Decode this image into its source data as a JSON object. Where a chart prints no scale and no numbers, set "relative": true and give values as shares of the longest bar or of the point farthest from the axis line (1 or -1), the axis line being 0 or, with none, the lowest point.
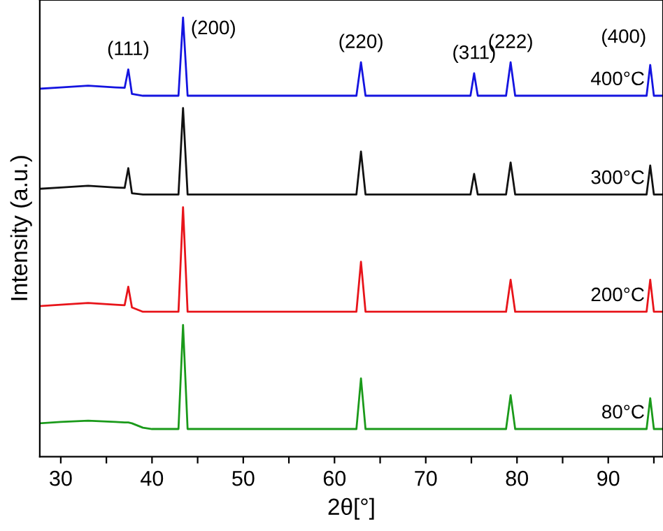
{
  "chart_data": {
    "type": "line",
    "relative": true,
    "xlabel": "2θ[°]",
    "ylabel": "Intensity (a.u.)",
    "xlim": [
      27.7,
      96
    ],
    "xticks": [
      30,
      {
        "value": 35,
        "label": null
      },
      40,
      {
        "value": 45,
        "label": null
      },
      50,
      {
        "value": 55,
        "label": null
      },
      60,
      {
        "value": 65,
        "label": null
      },
      70,
      {
        "value": 75,
        "label": null
      },
      80,
      {
        "value": 85,
        "label": null
      },
      90,
      {
        "value": 95,
        "label": null
      }
    ],
    "grid": false,
    "legend": false,
    "marker": "none",
    "line_style": "solid",
    "x": [
      27.7,
      30,
      33,
      36,
      37.0,
      37.4,
      37.8,
      39,
      40,
      42.9,
      43.4,
      43.9,
      46,
      50,
      54,
      58,
      62.4,
      62.9,
      63.4,
      66,
      70,
      74.9,
      75.3,
      75.7,
      78.8,
      79.3,
      79.8,
      84,
      88,
      92,
      94.2,
      94.6,
      95,
      96
    ],
    "series": [
      {
        "name": "80°C",
        "color": "#1a9a1a",
        "values": [
          0.076,
          0.079,
          0.082,
          0.079,
          0.078,
          0.078,
          0.076,
          0.066,
          0.063,
          0.063,
          0.3,
          0.063,
          0.063,
          0.063,
          0.063,
          0.063,
          0.063,
          0.178,
          0.063,
          0.063,
          0.063,
          0.063,
          0.063,
          0.063,
          0.063,
          0.14,
          0.063,
          0.063,
          0.063,
          0.063,
          0.063,
          0.133,
          0.063,
          0.063
        ]
      },
      {
        "name": "200°C",
        "color": "#e8141a",
        "values": [
          0.343,
          0.346,
          0.35,
          0.346,
          0.345,
          0.387,
          0.34,
          0.33,
          0.33,
          0.33,
          0.568,
          0.33,
          0.33,
          0.33,
          0.33,
          0.33,
          0.33,
          0.444,
          0.33,
          0.33,
          0.33,
          0.33,
          0.33,
          0.33,
          0.33,
          0.403,
          0.33,
          0.33,
          0.33,
          0.33,
          0.33,
          0.403,
          0.33,
          0.33
        ]
      },
      {
        "name": "300°C",
        "color": "#111111",
        "values": [
          0.61,
          0.613,
          0.617,
          0.613,
          0.612,
          0.657,
          0.6,
          0.597,
          0.597,
          0.597,
          0.794,
          0.597,
          0.597,
          0.597,
          0.597,
          0.597,
          0.597,
          0.695,
          0.597,
          0.597,
          0.597,
          0.597,
          0.644,
          0.597,
          0.597,
          0.67,
          0.597,
          0.597,
          0.597,
          0.597,
          0.597,
          0.663,
          0.597,
          0.597
        ]
      },
      {
        "name": "400°C",
        "color": "#1414e0",
        "values": [
          0.838,
          0.841,
          0.845,
          0.841,
          0.84,
          0.882,
          0.826,
          0.822,
          0.822,
          0.822,
          1.0,
          0.822,
          0.822,
          0.822,
          0.822,
          0.822,
          0.822,
          0.898,
          0.822,
          0.822,
          0.822,
          0.822,
          0.873,
          0.822,
          0.822,
          0.898,
          0.822,
          0.822,
          0.822,
          0.822,
          0.822,
          0.892,
          0.822,
          0.822
        ]
      }
    ],
    "annotations": [
      {
        "text": "(111)",
        "x": 37.4,
        "y": 0.882
      },
      {
        "text": "(200)",
        "x": 43.4,
        "y": 1.0
      },
      {
        "text": "(220)",
        "x": 62.9,
        "y": 0.898
      },
      {
        "text": "(311)",
        "x": 75.3,
        "y": 0.873
      },
      {
        "text": "(222)",
        "x": 79.3,
        "y": 0.898
      },
      {
        "text": "(400)",
        "x": 94.6,
        "y": 0.892
      }
    ]
  }
}
